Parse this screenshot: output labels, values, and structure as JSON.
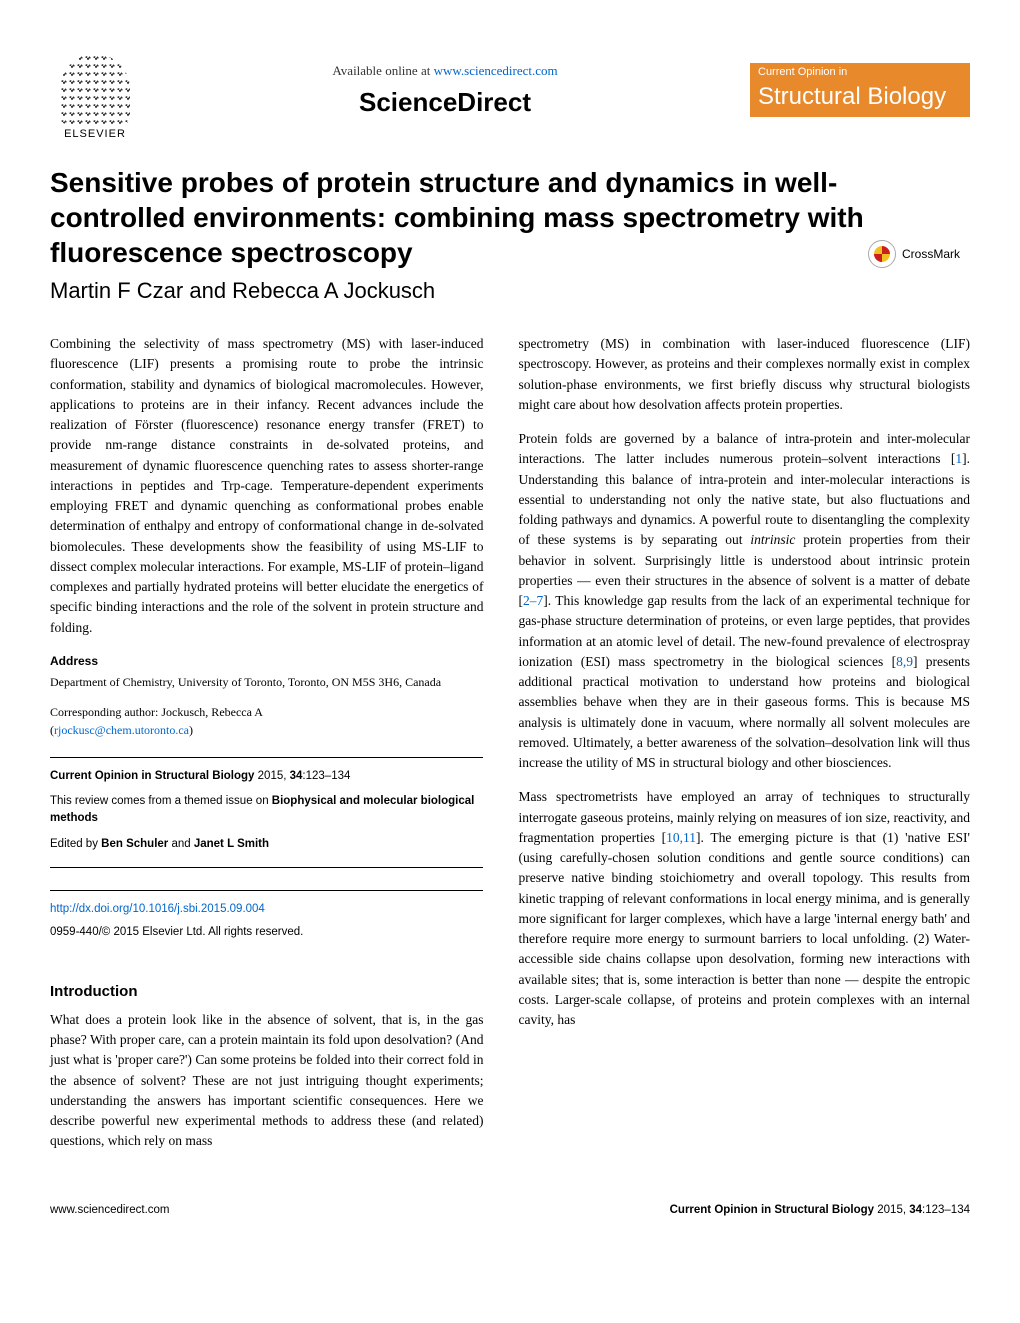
{
  "header": {
    "elsevier": "ELSEVIER",
    "available_online": "Available online at ",
    "available_url": "www.sciencedirect.com",
    "sciencedirect": "ScienceDirect",
    "badge_top": "Current Opinion in",
    "badge_bottom": "Structural Biology"
  },
  "title": "Sensitive probes of protein structure and dynamics in well-controlled environments: combining mass spectrometry with fluorescence spectroscopy",
  "authors": "Martin F Czar and Rebecca A Jockusch",
  "crossmark": "CrossMark",
  "abstract": "Combining the selectivity of mass spectrometry (MS) with laser-induced fluorescence (LIF) presents a promising route to probe the intrinsic conformation, stability and dynamics of biological macromolecules. However, applications to proteins are in their infancy. Recent advances include the realization of Förster (fluorescence) resonance energy transfer (FRET) to provide nm-range distance constraints in de-solvated proteins, and measurement of dynamic fluorescence quenching rates to assess shorter-range interactions in peptides and Trp-cage. Temperature-dependent experiments employing FRET and dynamic quenching as conformational probes enable determination of enthalpy and entropy of conformational change in de-solvated biomolecules. These developments show the feasibility of using MS-LIF to dissect complex molecular interactions. For example, MS-LIF of protein–ligand complexes and partially hydrated proteins will better elucidate the energetics of specific binding interactions and the role of the solvent in protein structure and folding.",
  "address": {
    "heading": "Address",
    "text": "Department of Chemistry, University of Toronto, Toronto, ON M5S 3H6, Canada"
  },
  "corresponding": {
    "label": "Corresponding author: Jockusch, Rebecca A",
    "email": "rjockusc@chem.utoronto.ca"
  },
  "infobox": {
    "journal": "Current Opinion in Structural Biology",
    "year_vol": " 2015, ",
    "pages_bold": "34",
    "pages_rest": ":123–134",
    "theme_pre": "This review comes from a themed issue on ",
    "theme": "Biophysical and molecular biological methods",
    "editors_pre": "Edited by ",
    "editors": "Ben Schuler",
    "editors_and": " and ",
    "editors2": "Janet L Smith"
  },
  "doi": {
    "url": "http://dx.doi.org/10.1016/j.sbi.2015.09.004",
    "copyright": "0959-440/© 2015 Elsevier Ltd. All rights reserved."
  },
  "intro": {
    "heading": "Introduction",
    "p1": "What does a protein look like in the absence of solvent, that is, in the gas phase? With proper care, can a protein maintain its fold upon desolvation? (And just what is 'proper care?') Can some proteins be folded into their correct fold in the absence of solvent? These are not just intriguing thought experiments; understanding the answers has important scientific consequences. Here we describe powerful new experimental methods to address these (and related) questions, which rely on mass"
  },
  "right": {
    "p1": "spectrometry (MS) in combination with laser-induced fluorescence (LIF) spectroscopy. However, as proteins and their complexes normally exist in complex solution-phase environments, we first briefly discuss why structural biologists might care about how desolvation affects protein properties.",
    "p2a": "Protein folds are governed by a balance of intra-protein and inter-molecular interactions. The latter includes numerous protein–solvent interactions [",
    "ref1": "1",
    "p2b": "]. Understanding this balance of intra-protein and inter-molecular interactions is essential to understanding not only the native state, but also fluctuations and folding pathways and dynamics. A powerful route to disentangling the complexity of these systems is by separating out ",
    "intrinsic": "intrinsic",
    "p2c": " protein properties from their behavior in solvent. Surprisingly little is understood about intrinsic protein properties — even their structures in the absence of solvent is a matter of debate [",
    "ref2": "2–7",
    "p2d": "]. This knowledge gap results from the lack of an experimental technique for gas-phase structure determination of proteins, or even large peptides, that provides information at an atomic level of detail. The new-found prevalence of electrospray ionization (ESI) mass spectrometry in the biological sciences [",
    "ref3": "8,9",
    "p2e": "] presents additional practical motivation to understand how proteins and biological assemblies behave when they are in their gaseous forms. This is because MS analysis is ultimately done in vacuum, where normally all solvent molecules are removed. Ultimately, a better awareness of the solvation–desolvation link will thus increase the utility of MS in structural biology and other biosciences.",
    "p3a": "Mass spectrometrists have employed an array of techniques to structurally interrogate gaseous proteins, mainly relying on measures of ion size, reactivity, and fragmentation properties [",
    "ref4": "10,11",
    "p3b": "]. The emerging picture is that (1) 'native ESI' (using carefully-chosen solution conditions and gentle source conditions) can preserve native binding stoichiometry and overall topology. This results from kinetic trapping of relevant conformations in local energy minima, and is generally more significant for larger complexes, which have a large 'internal energy bath' and therefore require more energy to surmount barriers to local unfolding. (2) Water-accessible side chains collapse upon desolvation, forming new interactions with available sites; that is, some interaction is better than none — despite the entropic costs. Larger-scale collapse, of proteins and protein complexes with an internal cavity, has"
  },
  "footer": {
    "left": "www.sciencedirect.com",
    "right_journal": "Current Opinion in Structural Biology",
    "right_rest": " 2015, ",
    "right_bold": "34",
    "right_end": ":123–134"
  },
  "colors": {
    "orange": "#e8892b",
    "link": "#0066cc"
  }
}
